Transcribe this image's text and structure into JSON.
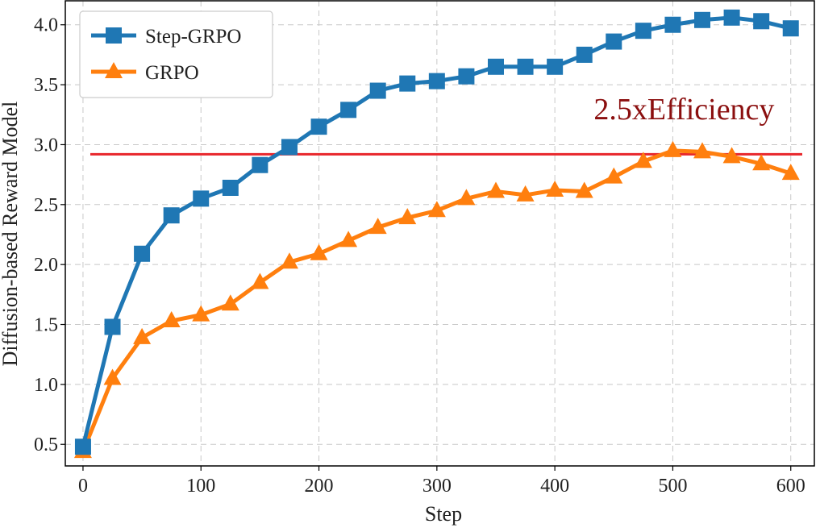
{
  "chart_data": {
    "type": "line",
    "xlabel": "Step",
    "ylabel": "Diffusion-based Reward Model",
    "xlim": [
      -15,
      620
    ],
    "ylim": [
      0.32,
      4.2
    ],
    "xticks": [
      0,
      100,
      200,
      300,
      400,
      500,
      600
    ],
    "yticks": [
      0.5,
      1.0,
      1.5,
      2.0,
      2.5,
      3.0,
      3.5,
      4.0
    ],
    "xtick_labels": [
      "0",
      "100",
      "200",
      "300",
      "400",
      "500",
      "600"
    ],
    "ytick_labels": [
      "0.5",
      "1.0",
      "1.5",
      "2.0",
      "2.5",
      "3.0",
      "3.5",
      "4.0"
    ],
    "grid": true,
    "legend_position": "top-left",
    "x": [
      0,
      25,
      50,
      75,
      100,
      125,
      150,
      175,
      200,
      225,
      250,
      275,
      300,
      325,
      350,
      375,
      400,
      425,
      450,
      475,
      500,
      525,
      550,
      575,
      600
    ],
    "series": [
      {
        "name": "Step-GRPO",
        "color": "#1f77b4",
        "marker": "square",
        "values": [
          0.48,
          1.48,
          2.09,
          2.41,
          2.55,
          2.64,
          2.83,
          2.98,
          3.15,
          3.29,
          3.45,
          3.51,
          3.53,
          3.57,
          3.65,
          3.65,
          3.65,
          3.75,
          3.86,
          3.95,
          4.0,
          4.04,
          4.06,
          4.03,
          3.97
        ]
      },
      {
        "name": "GRPO",
        "color": "#ff7f0e",
        "marker": "triangle",
        "values": [
          0.44,
          1.05,
          1.39,
          1.53,
          1.58,
          1.67,
          1.85,
          2.02,
          2.09,
          2.2,
          2.31,
          2.39,
          2.45,
          2.55,
          2.61,
          2.58,
          2.62,
          2.61,
          2.73,
          2.86,
          2.95,
          2.94,
          2.9,
          2.84,
          2.76
        ]
      }
    ],
    "reference_line": {
      "y": 2.92,
      "color": "#e8262b"
    },
    "annotation": {
      "text": "2.5xEfficiency",
      "color": "#8b0f0f",
      "x": 515,
      "y": 3.17
    }
  }
}
